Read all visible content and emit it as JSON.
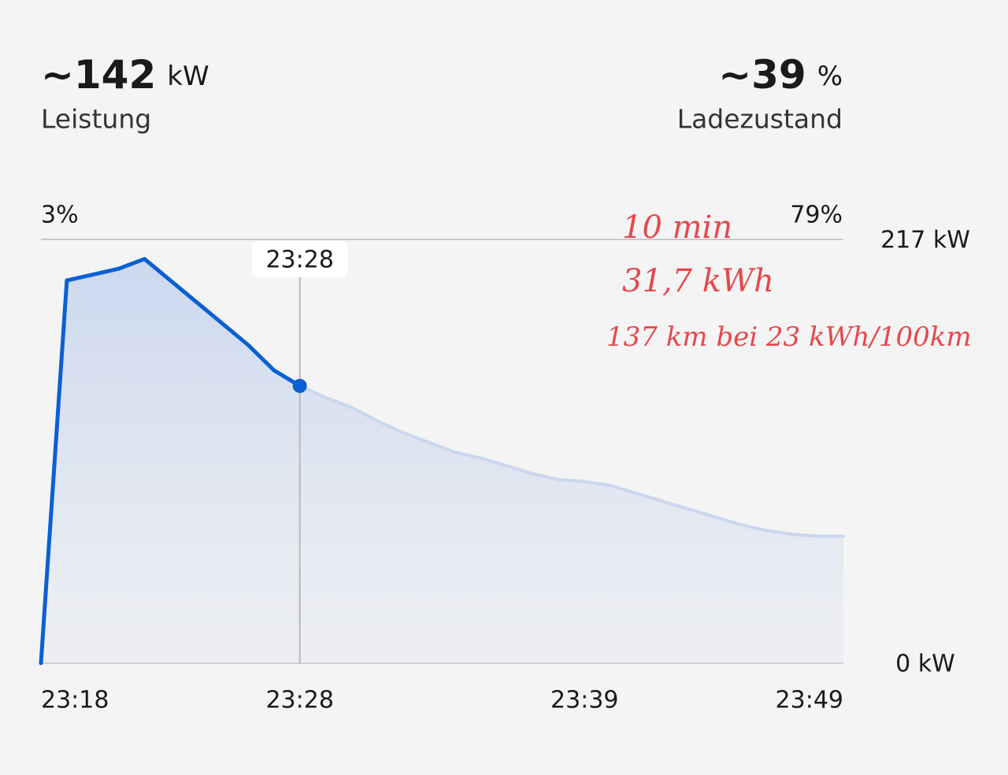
{
  "header": {
    "power": {
      "value": "~142",
      "unit": "kW",
      "label": "Leistung"
    },
    "soc": {
      "value": "~39",
      "unit": "%",
      "label": "Ladezustand"
    }
  },
  "chart_data": {
    "type": "line",
    "soc_start": "3%",
    "soc_end": "79%",
    "x": [
      "23:18",
      "23:19",
      "23:20",
      "23:21",
      "23:22",
      "23:23",
      "23:24",
      "23:25",
      "23:26",
      "23:27",
      "23:28",
      "23:29",
      "23:30",
      "23:31",
      "23:32",
      "23:33",
      "23:34",
      "23:35",
      "23:36",
      "23:37",
      "23:38",
      "23:39",
      "23:40",
      "23:41",
      "23:42",
      "23:43",
      "23:44",
      "23:45",
      "23:46",
      "23:47",
      "23:48",
      "23:49"
    ],
    "values": [
      0,
      196,
      199,
      202,
      207,
      196,
      185,
      174,
      163,
      150,
      142,
      136,
      131,
      124,
      118,
      113,
      108,
      105,
      101,
      97,
      94,
      93,
      91,
      87,
      83,
      79,
      75,
      71,
      68,
      66,
      65,
      65
    ],
    "color": "#0b5fd4",
    "rest_color": "#c9d7ef",
    "cursor": "23:28",
    "xlim": [
      "23:18",
      "23:49"
    ],
    "xticks": [
      "23:18",
      "23:28",
      "23:39",
      "23:49"
    ],
    "ylim": [
      0,
      217
    ],
    "yticks": [
      {
        "value": 0,
        "label": "0 kW"
      },
      {
        "value": 217,
        "label": "217 kW"
      }
    ],
    "annotations": [
      "10 min",
      "31,7 kWh",
      "137 km bei 23 kWh/100km"
    ],
    "annotation_color": "#e5484d"
  }
}
